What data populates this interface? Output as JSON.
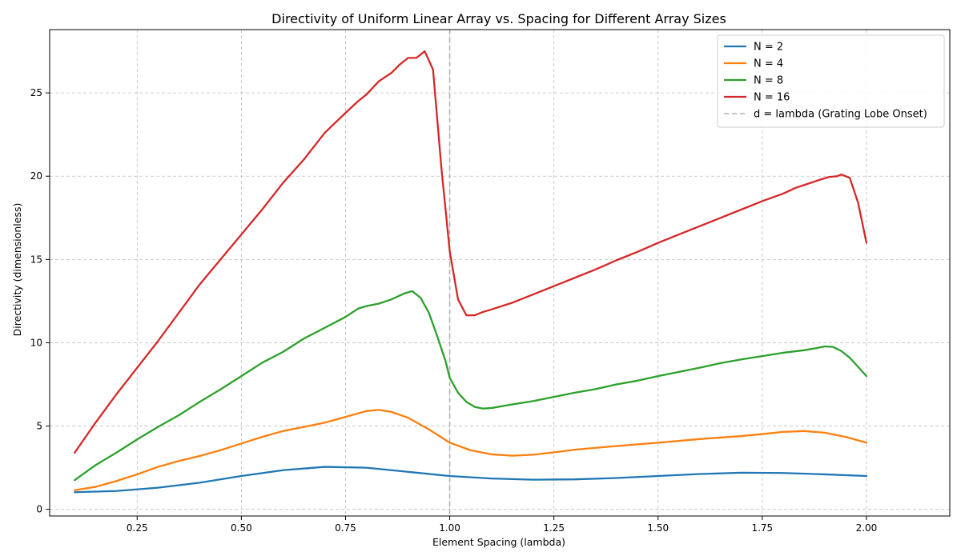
{
  "chart_data": {
    "type": "line",
    "title": "Directivity of Uniform Linear Array vs. Spacing for Different Array Sizes",
    "xlabel": "Element Spacing (lambda)",
    "ylabel": "Directivity (dimensionless)",
    "xlim": [
      0.04,
      2.2
    ],
    "ylim": [
      -0.4,
      28.8
    ],
    "xticks": [
      0.25,
      0.5,
      0.75,
      1.0,
      1.25,
      1.5,
      1.75,
      2.0
    ],
    "xtick_labels": [
      "0.25",
      "0.50",
      "0.75",
      "1.00",
      "1.25",
      "1.50",
      "1.75",
      "2.00"
    ],
    "yticks": [
      0,
      5,
      10,
      15,
      20,
      25
    ],
    "ytick_labels": [
      "0",
      "5",
      "10",
      "15",
      "20",
      "25"
    ],
    "grid": true,
    "legend_position": "top-right",
    "series": [
      {
        "name": "N = 2",
        "color": "#1f77b4",
        "points": [
          [
            0.1,
            1.03
          ],
          [
            0.2,
            1.1
          ],
          [
            0.3,
            1.3
          ],
          [
            0.4,
            1.6
          ],
          [
            0.5,
            2.0
          ],
          [
            0.6,
            2.35
          ],
          [
            0.7,
            2.55
          ],
          [
            0.8,
            2.5
          ],
          [
            0.9,
            2.25
          ],
          [
            1.0,
            2.0
          ],
          [
            1.1,
            1.85
          ],
          [
            1.2,
            1.78
          ],
          [
            1.3,
            1.8
          ],
          [
            1.4,
            1.88
          ],
          [
            1.5,
            2.0
          ],
          [
            1.6,
            2.12
          ],
          [
            1.7,
            2.2
          ],
          [
            1.8,
            2.18
          ],
          [
            1.9,
            2.1
          ],
          [
            2.0,
            2.0
          ]
        ]
      },
      {
        "name": "N = 4",
        "color": "#ff7f0e",
        "points": [
          [
            0.1,
            1.15
          ],
          [
            0.15,
            1.35
          ],
          [
            0.2,
            1.7
          ],
          [
            0.25,
            2.1
          ],
          [
            0.3,
            2.55
          ],
          [
            0.35,
            2.9
          ],
          [
            0.4,
            3.2
          ],
          [
            0.45,
            3.55
          ],
          [
            0.5,
            3.95
          ],
          [
            0.55,
            4.35
          ],
          [
            0.6,
            4.7
          ],
          [
            0.65,
            4.95
          ],
          [
            0.7,
            5.2
          ],
          [
            0.75,
            5.55
          ],
          [
            0.8,
            5.9
          ],
          [
            0.83,
            5.97
          ],
          [
            0.86,
            5.85
          ],
          [
            0.9,
            5.5
          ],
          [
            0.95,
            4.8
          ],
          [
            1.0,
            4.0
          ],
          [
            1.05,
            3.55
          ],
          [
            1.1,
            3.3
          ],
          [
            1.15,
            3.22
          ],
          [
            1.2,
            3.28
          ],
          [
            1.25,
            3.42
          ],
          [
            1.3,
            3.58
          ],
          [
            1.4,
            3.8
          ],
          [
            1.5,
            4.0
          ],
          [
            1.6,
            4.22
          ],
          [
            1.7,
            4.4
          ],
          [
            1.75,
            4.52
          ],
          [
            1.8,
            4.65
          ],
          [
            1.85,
            4.7
          ],
          [
            1.9,
            4.6
          ],
          [
            1.95,
            4.35
          ],
          [
            2.0,
            4.0
          ]
        ]
      },
      {
        "name": "N = 8",
        "color": "#2ca02c",
        "points": [
          [
            0.1,
            1.75
          ],
          [
            0.15,
            2.65
          ],
          [
            0.2,
            3.4
          ],
          [
            0.25,
            4.2
          ],
          [
            0.3,
            4.95
          ],
          [
            0.35,
            5.65
          ],
          [
            0.4,
            6.45
          ],
          [
            0.45,
            7.2
          ],
          [
            0.5,
            8.0
          ],
          [
            0.55,
            8.8
          ],
          [
            0.6,
            9.45
          ],
          [
            0.65,
            10.25
          ],
          [
            0.7,
            10.9
          ],
          [
            0.75,
            11.55
          ],
          [
            0.78,
            12.05
          ],
          [
            0.8,
            12.2
          ],
          [
            0.83,
            12.35
          ],
          [
            0.86,
            12.6
          ],
          [
            0.89,
            12.95
          ],
          [
            0.91,
            13.1
          ],
          [
            0.93,
            12.7
          ],
          [
            0.95,
            11.8
          ],
          [
            0.97,
            10.4
          ],
          [
            0.99,
            8.9
          ],
          [
            1.0,
            7.9
          ],
          [
            1.02,
            7.0
          ],
          [
            1.04,
            6.45
          ],
          [
            1.06,
            6.15
          ],
          [
            1.08,
            6.05
          ],
          [
            1.1,
            6.08
          ],
          [
            1.15,
            6.3
          ],
          [
            1.2,
            6.5
          ],
          [
            1.25,
            6.75
          ],
          [
            1.3,
            7.0
          ],
          [
            1.35,
            7.22
          ],
          [
            1.4,
            7.5
          ],
          [
            1.45,
            7.72
          ],
          [
            1.5,
            8.0
          ],
          [
            1.55,
            8.25
          ],
          [
            1.6,
            8.5
          ],
          [
            1.65,
            8.78
          ],
          [
            1.7,
            9.0
          ],
          [
            1.75,
            9.2
          ],
          [
            1.8,
            9.4
          ],
          [
            1.85,
            9.55
          ],
          [
            1.88,
            9.68
          ],
          [
            1.9,
            9.78
          ],
          [
            1.92,
            9.75
          ],
          [
            1.94,
            9.5
          ],
          [
            1.96,
            9.1
          ],
          [
            1.98,
            8.55
          ],
          [
            2.0,
            8.0
          ]
        ]
      },
      {
        "name": "N = 16",
        "color": "#d62728",
        "points": [
          [
            0.1,
            3.4
          ],
          [
            0.15,
            5.2
          ],
          [
            0.2,
            6.9
          ],
          [
            0.25,
            8.5
          ],
          [
            0.3,
            10.1
          ],
          [
            0.35,
            11.8
          ],
          [
            0.4,
            13.5
          ],
          [
            0.45,
            15.0
          ],
          [
            0.5,
            16.5
          ],
          [
            0.55,
            18.0
          ],
          [
            0.6,
            19.6
          ],
          [
            0.65,
            21.0
          ],
          [
            0.7,
            22.6
          ],
          [
            0.75,
            23.8
          ],
          [
            0.78,
            24.5
          ],
          [
            0.8,
            24.9
          ],
          [
            0.83,
            25.7
          ],
          [
            0.86,
            26.2
          ],
          [
            0.88,
            26.7
          ],
          [
            0.9,
            27.1
          ],
          [
            0.92,
            27.1
          ],
          [
            0.94,
            27.5
          ],
          [
            0.96,
            26.4
          ],
          [
            0.98,
            20.5
          ],
          [
            1.0,
            15.5
          ],
          [
            1.02,
            12.6
          ],
          [
            1.04,
            11.65
          ],
          [
            1.06,
            11.65
          ],
          [
            1.08,
            11.85
          ],
          [
            1.1,
            12.0
          ],
          [
            1.15,
            12.4
          ],
          [
            1.2,
            12.9
          ],
          [
            1.25,
            13.4
          ],
          [
            1.3,
            13.9
          ],
          [
            1.35,
            14.4
          ],
          [
            1.4,
            14.95
          ],
          [
            1.45,
            15.45
          ],
          [
            1.5,
            16.0
          ],
          [
            1.55,
            16.5
          ],
          [
            1.6,
            17.0
          ],
          [
            1.65,
            17.5
          ],
          [
            1.7,
            18.0
          ],
          [
            1.75,
            18.5
          ],
          [
            1.8,
            18.95
          ],
          [
            1.83,
            19.3
          ],
          [
            1.86,
            19.55
          ],
          [
            1.89,
            19.8
          ],
          [
            1.91,
            19.95
          ],
          [
            1.93,
            20.0
          ],
          [
            1.94,
            20.1
          ],
          [
            1.96,
            19.9
          ],
          [
            1.98,
            18.4
          ],
          [
            2.0,
            16.0
          ]
        ]
      }
    ],
    "reference_line": {
      "name": "d = lambda (Grating Lobe Onset)",
      "x": 1.0,
      "color": "#b0b0b0"
    }
  }
}
